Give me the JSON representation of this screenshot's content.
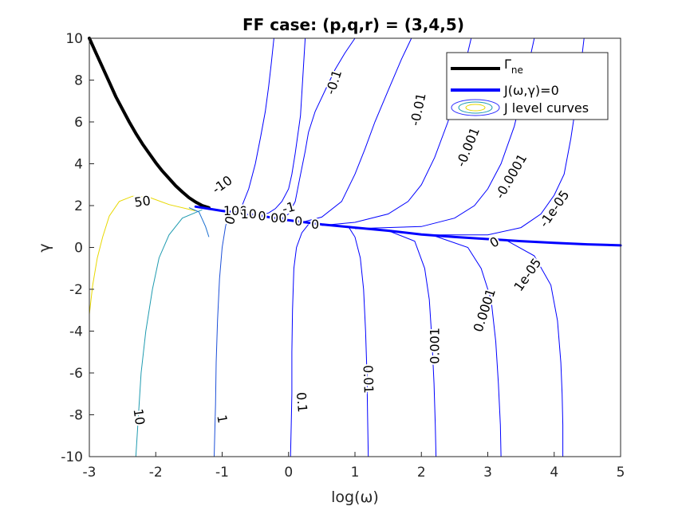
{
  "chart_data": {
    "type": "line",
    "title": "FF case: (p,q,r) = (3,4,5)",
    "xlabel": "log(ω)",
    "ylabel": "γ",
    "xlim": [
      -3,
      5
    ],
    "ylim": [
      -10,
      10
    ],
    "x_ticks": [
      "-3",
      "-2",
      "-1",
      "0",
      "1",
      "2",
      "3",
      "4",
      "5"
    ],
    "y_ticks": [
      "-10",
      "-8",
      "-6",
      "-4",
      "-2",
      "0",
      "2",
      "4",
      "6",
      "8",
      "10"
    ],
    "legend": {
      "placement": "top-right",
      "entries": [
        {
          "label": "Γne",
          "main": "Γ",
          "sub": "ne",
          "color": "#000000"
        },
        {
          "label": "J(ω,γ)=0",
          "color": "#0000ff"
        },
        {
          "label": "J level curves",
          "color": "#00aacc"
        }
      ]
    },
    "series": [
      {
        "name": "Γne",
        "color": "#000000",
        "x": [
          -3.0,
          -2.9,
          -2.8,
          -2.7,
          -2.6,
          -2.5,
          -2.4,
          -2.3,
          -2.2,
          -2.1,
          -2.0,
          -1.9,
          -1.8,
          -1.7,
          -1.6,
          -1.5,
          -1.4,
          -1.3,
          -1.2
        ],
        "y": [
          10.0,
          9.3,
          8.6,
          7.9,
          7.2,
          6.6,
          6.0,
          5.45,
          4.95,
          4.5,
          4.05,
          3.65,
          3.3,
          2.95,
          2.65,
          2.38,
          2.17,
          2.0,
          1.9
        ]
      },
      {
        "name": "J(ω,γ)=0",
        "color": "#0000ff",
        "x": [
          -1.4,
          -1.0,
          -0.5,
          0.0,
          0.5,
          1.0,
          1.5,
          2.0,
          2.5,
          3.0,
          3.5,
          4.0,
          4.5,
          5.0
        ],
        "y": [
          1.95,
          1.75,
          1.55,
          1.3,
          1.1,
          0.95,
          0.8,
          0.62,
          0.5,
          0.4,
          0.3,
          0.22,
          0.15,
          0.1
        ]
      }
    ],
    "contours": [
      {
        "level": "-0.1",
        "color": "#0000ff",
        "x": [
          -0.1,
          0.0,
          0.1,
          0.15,
          0.2,
          0.25,
          0.3,
          0.4,
          0.55,
          0.7,
          0.85,
          1.0
        ],
        "y": [
          1.4,
          1.6,
          2.2,
          3.0,
          3.8,
          4.6,
          5.5,
          6.5,
          7.5,
          8.5,
          9.3,
          10.0
        ]
      },
      {
        "level": "-0.01",
        "color": "#0000ff",
        "x": [
          0.2,
          0.5,
          0.8,
          1.0,
          1.15,
          1.3,
          1.5,
          1.7,
          1.85
        ],
        "y": [
          1.2,
          1.45,
          2.2,
          3.5,
          4.7,
          6.0,
          7.5,
          9.0,
          10.0
        ]
      },
      {
        "level": "-0.001",
        "color": "#0000ff",
        "x": [
          0.5,
          1.0,
          1.5,
          1.8,
          2.0,
          2.2,
          2.4,
          2.6,
          2.75
        ],
        "y": [
          1.05,
          1.2,
          1.6,
          2.2,
          3.0,
          4.3,
          6.0,
          8.0,
          10.0
        ]
      },
      {
        "level": "-0.0001",
        "color": "#0000ff",
        "x": [
          1.0,
          2.0,
          2.5,
          2.8,
          3.0,
          3.2,
          3.4,
          3.55,
          3.7
        ],
        "y": [
          0.9,
          1.0,
          1.4,
          2.0,
          2.8,
          4.0,
          5.8,
          7.8,
          10.0
        ]
      },
      {
        "level": "-1e-05",
        "color": "#0000ff",
        "x": [
          2.0,
          3.0,
          3.5,
          3.8,
          4.0,
          4.15,
          4.25,
          4.35,
          4.45
        ],
        "y": [
          0.6,
          0.6,
          0.95,
          1.6,
          2.5,
          3.5,
          5.2,
          7.3,
          10.0
        ]
      },
      {
        "level": "-1",
        "color": "#0000ff",
        "x": [
          -0.4,
          -0.3,
          -0.2,
          -0.1,
          0.0,
          0.05,
          0.1,
          0.18,
          0.25
        ],
        "y": [
          1.55,
          1.65,
          1.85,
          2.2,
          2.8,
          3.5,
          4.5,
          6.3,
          10.0
        ]
      },
      {
        "level": "-10",
        "color": "#0000ff",
        "x": [
          -0.8,
          -0.7,
          -0.6,
          -0.5,
          -0.42,
          -0.35,
          -0.3,
          -0.26,
          -0.22
        ],
        "y": [
          1.7,
          2.0,
          2.8,
          4.0,
          5.3,
          6.5,
          7.7,
          8.8,
          10.0
        ]
      },
      {
        "level": "0.1",
        "color": "#0000ff",
        "x": [
          0.3,
          0.2,
          0.12,
          0.08,
          0.06,
          0.05,
          0.05,
          0.04,
          0.03
        ],
        "y": [
          1.1,
          0.7,
          0.0,
          -1.0,
          -3.0,
          -5.0,
          -7.0,
          -8.5,
          -10.0
        ]
      },
      {
        "level": "0.01",
        "color": "#0000ff",
        "x": [
          0.9,
          1.0,
          1.08,
          1.13,
          1.16,
          1.18,
          1.19,
          1.2
        ],
        "y": [
          1.0,
          0.5,
          -0.5,
          -2.0,
          -4.0,
          -6.0,
          -8.0,
          -10.0
        ]
      },
      {
        "level": "0.001",
        "color": "#0000ff",
        "x": [
          1.5,
          1.9,
          2.05,
          2.12,
          2.16,
          2.19,
          2.21,
          2.22
        ],
        "y": [
          0.8,
          0.3,
          -1.0,
          -2.5,
          -4.5,
          -6.5,
          -8.5,
          -10.0
        ]
      },
      {
        "level": "0.0001",
        "color": "#0000ff",
        "x": [
          2.2,
          2.7,
          2.9,
          3.05,
          3.12,
          3.16,
          3.19,
          3.2
        ],
        "y": [
          0.55,
          0.0,
          -1.0,
          -2.5,
          -4.5,
          -6.5,
          -8.5,
          -10.0
        ]
      },
      {
        "level": "1e-05",
        "color": "#0000ff",
        "x": [
          3.3,
          3.7,
          3.95,
          4.05,
          4.1,
          4.12,
          4.13,
          4.13
        ],
        "y": [
          0.3,
          -0.4,
          -1.8,
          -3.5,
          -5.5,
          -7.0,
          -8.5,
          -10.0
        ]
      },
      {
        "level": "1",
        "color": "#1c4fd8",
        "x": [
          -0.9,
          -0.95,
          -1.0,
          -1.04,
          -1.07,
          -1.09,
          -1.1,
          -1.11,
          -1.12
        ],
        "y": [
          1.6,
          1.0,
          0.0,
          -1.5,
          -3.5,
          -5.5,
          -7.5,
          -8.8,
          -10.0
        ]
      },
      {
        "level": "10",
        "color": "#1f9bb0",
        "x": [
          -1.3,
          -1.6,
          -1.8,
          -1.95,
          -2.05,
          -2.15,
          -2.22,
          -2.26,
          -2.3
        ],
        "y": [
          1.8,
          1.4,
          0.6,
          -0.5,
          -2.0,
          -4.0,
          -6.0,
          -8.0,
          -10.0
        ]
      },
      {
        "level": "50",
        "color": "#e8d800",
        "x": [
          -1.4,
          -1.8,
          -2.1,
          -2.35,
          -2.55,
          -2.7,
          -2.8,
          -2.88,
          -2.95,
          -3.0
        ],
        "y": [
          1.75,
          2.05,
          2.4,
          2.45,
          2.2,
          1.5,
          0.5,
          -0.5,
          -1.8,
          -3.2
        ]
      },
      {
        "level": "0",
        "color": "#1a6fd0",
        "x": [
          -1.5,
          -1.35,
          -1.25,
          -1.2
        ],
        "y": [
          1.9,
          1.7,
          1.0,
          0.5
        ]
      }
    ],
    "contour_labels": [
      {
        "text": "-0.1",
        "x": 0.68,
        "y": 7.9,
        "rotate": 72
      },
      {
        "text": "-0.01",
        "x": 1.95,
        "y": 6.6,
        "rotate": 78
      },
      {
        "text": "-0.001",
        "x": 2.7,
        "y": 4.8,
        "rotate": 68
      },
      {
        "text": "-0.0001",
        "x": 3.35,
        "y": 3.4,
        "rotate": 60
      },
      {
        "text": "-1e-05",
        "x": 4.0,
        "y": 1.85,
        "rotate": 55
      },
      {
        "text": "-10",
        "x": -1.0,
        "y": 3.0,
        "rotate": 35
      },
      {
        "text": "-1",
        "x": 0.0,
        "y": 1.9,
        "rotate": 15
      },
      {
        "text": "50",
        "x": -2.2,
        "y": 2.2,
        "rotate": 8
      },
      {
        "text": "0",
        "x": -0.88,
        "y": 1.3,
        "rotate": 72
      },
      {
        "text": "0",
        "x": 3.1,
        "y": 0.25,
        "rotate": 30
      },
      {
        "text": "1e-05",
        "x": 3.6,
        "y": -1.3,
        "rotate": 55
      },
      {
        "text": "0.0001",
        "x": 2.95,
        "y": -3.0,
        "rotate": 72
      },
      {
        "text": "0.001",
        "x": 2.2,
        "y": -4.7,
        "rotate": 90
      },
      {
        "text": "0.01",
        "x": 1.2,
        "y": -6.3,
        "rotate": -88
      },
      {
        "text": "0.1",
        "x": 0.2,
        "y": -7.4,
        "rotate": -85
      },
      {
        "text": "1",
        "x": -1.0,
        "y": -8.2,
        "rotate": -80
      },
      {
        "text": "10",
        "x": -2.25,
        "y": -8.1,
        "rotate": -82
      },
      {
        "text": "100",
        "x": -0.8,
        "y": 1.75,
        "rotate": 0
      },
      {
        "text": "10",
        "x": -0.6,
        "y": 1.6,
        "rotate": 0
      },
      {
        "text": "0",
        "x": -0.4,
        "y": 1.5,
        "rotate": 0
      },
      {
        "text": "00",
        "x": -0.15,
        "y": 1.4,
        "rotate": 0
      },
      {
        "text": "0",
        "x": 0.15,
        "y": 1.25,
        "rotate": 0
      },
      {
        "text": "0",
        "x": 0.4,
        "y": 1.1,
        "rotate": 0
      }
    ],
    "grid": false
  }
}
